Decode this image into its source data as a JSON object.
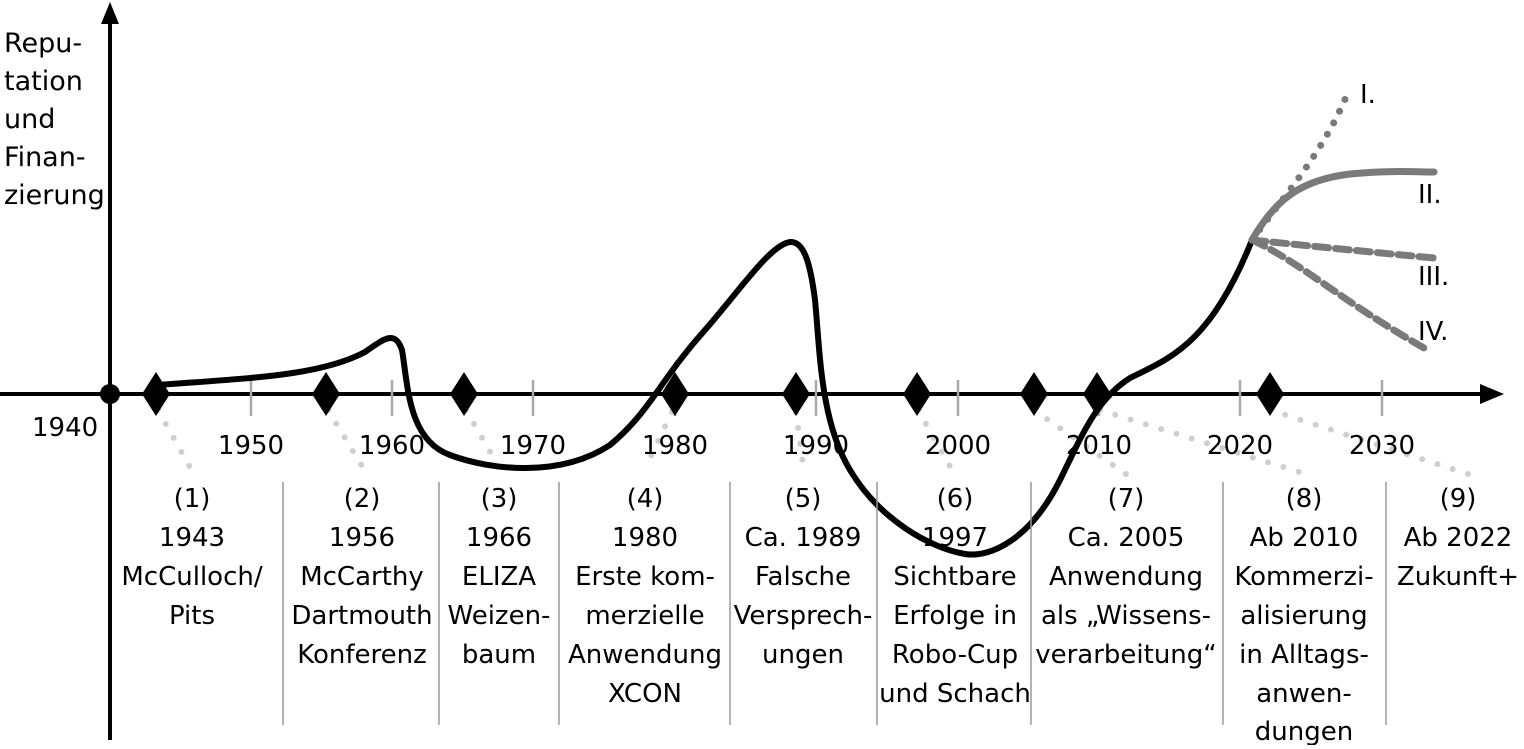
{
  "y_axis_label": [
    "Repu-",
    "tation",
    "und",
    "Finan-",
    "zierung"
  ],
  "origin_label": "1940",
  "x_ticks": [
    "1950",
    "1960",
    "1970",
    "1980",
    "1990",
    "2000",
    "2010",
    "2020",
    "2030"
  ],
  "events": [
    {
      "number": "(1)",
      "lines": [
        "1943",
        "McCulloch/",
        "Pits"
      ]
    },
    {
      "number": "(2)",
      "lines": [
        "1956",
        "McCarthy",
        "Dartmouth",
        "Konferenz"
      ]
    },
    {
      "number": "(3)",
      "lines": [
        "1966",
        "ELIZA",
        "Weizen-",
        "baum"
      ]
    },
    {
      "number": "(4)",
      "lines": [
        "1980",
        "Erste kom-",
        "merzielle",
        "Anwendung",
        "XCON"
      ]
    },
    {
      "number": "(5)",
      "lines": [
        "Ca. 1989",
        "Falsche",
        "Versprech-",
        "ungen"
      ]
    },
    {
      "number": "(6)",
      "lines": [
        "1997",
        "Sichtbare",
        "Erfolge in",
        "Robo-Cup",
        "und Schach"
      ]
    },
    {
      "number": "(7)",
      "lines": [
        "Ca. 2005",
        "Anwendung",
        "als „Wissens-",
        "verarbeitung“"
      ]
    },
    {
      "number": "(8)",
      "lines": [
        "Ab 2010",
        "Kommerzi-",
        "alisierung",
        "in Alltags-",
        "anwen-",
        "dungen"
      ]
    },
    {
      "number": "(9)",
      "lines": [
        "Ab 2022",
        "Zukunft+"
      ]
    }
  ],
  "scenarios": [
    "I.",
    "II.",
    "III.",
    "IV."
  ],
  "colors": {
    "line": "#000000",
    "scenario": "#7a7a7a",
    "connector": "#cfcfcf",
    "tick": "#a8a8a8",
    "divider": "#9a9a9a"
  }
}
